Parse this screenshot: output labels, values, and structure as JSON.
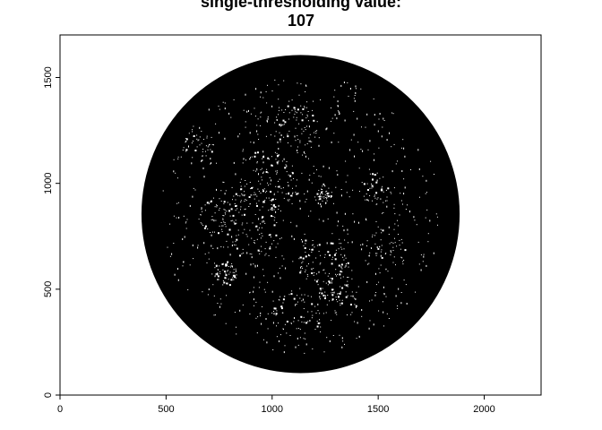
{
  "chart_data": {
    "type": "image-plot",
    "title": [
      "single-thresholding value:",
      "107"
    ],
    "xlabel": "",
    "ylabel": "",
    "xlim": [
      0,
      2268
    ],
    "ylim": [
      0,
      1701
    ],
    "x_ticks": [
      0,
      500,
      1000,
      1500,
      2000
    ],
    "y_ticks": [
      0,
      500,
      1000,
      1500
    ],
    "x_tick_labels": [
      "0",
      "500",
      "1000",
      "1500",
      "2000"
    ],
    "y_tick_labels": [
      "0",
      "500",
      "1000",
      "1500"
    ],
    "threshold": 107,
    "disc": {
      "center_x": 1134,
      "center_y": 855,
      "radius": 750
    },
    "foreground_color": "#000000",
    "background_color": "#ffffff",
    "speckle_color": "#ffffff"
  }
}
